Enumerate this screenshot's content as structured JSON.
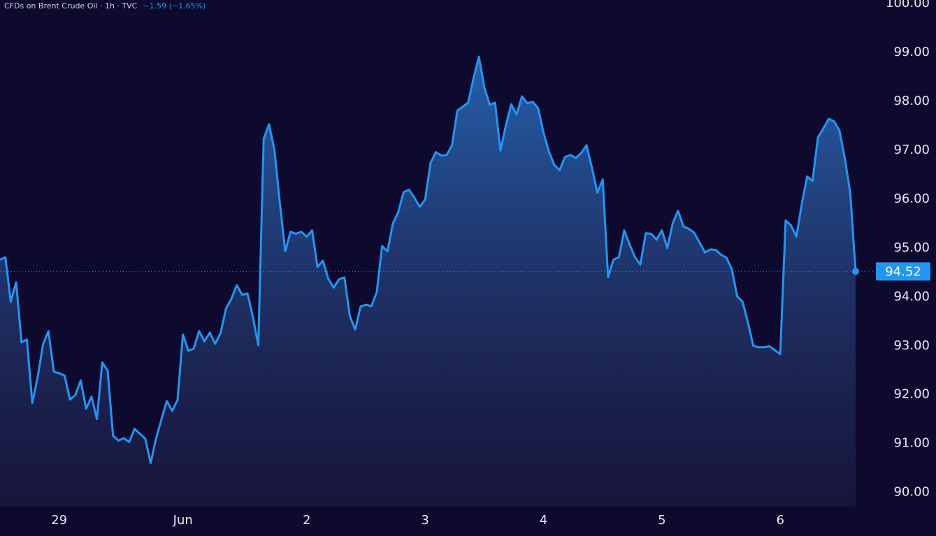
{
  "chart_data": {
    "type": "area",
    "title": "CFDs on Brent Crude Oil · 1h · TVC",
    "change": "−1.59 (−1.65%)",
    "color": "#2196f3",
    "categories": [
      null,
      null,
      null,
      null,
      null,
      null,
      null,
      null,
      null,
      null,
      null,
      "29",
      null,
      null,
      null,
      null,
      null,
      null,
      null,
      null,
      null,
      null,
      null,
      null,
      null,
      null,
      null,
      null,
      null,
      null,
      null,
      null,
      null,
      null,
      "Jun",
      null,
      null,
      null,
      null,
      null,
      null,
      null,
      null,
      null,
      null,
      null,
      null,
      null,
      null,
      null,
      null,
      null,
      null,
      null,
      null,
      null,
      null,
      "2",
      null,
      null,
      null,
      null,
      null,
      null,
      null,
      null,
      null,
      null,
      null,
      null,
      null,
      null,
      null,
      null,
      null,
      null,
      null,
      null,
      null,
      "3",
      null,
      null,
      null,
      null,
      null,
      null,
      null,
      null,
      null,
      null,
      null,
      null,
      null,
      null,
      null,
      null,
      null,
      null,
      null,
      null,
      null,
      "4",
      null,
      null,
      null,
      null,
      null,
      null,
      null,
      null,
      null,
      null,
      null,
      null,
      null,
      null,
      null,
      null,
      null,
      null,
      null,
      null,
      null,
      "5",
      null,
      null,
      null,
      null,
      null,
      null,
      null,
      null,
      null,
      null,
      null,
      null,
      null,
      null,
      null,
      null,
      null,
      null,
      null,
      null,
      null,
      "6",
      null,
      null,
      null,
      null,
      null,
      null,
      null,
      null,
      null,
      null,
      null,
      null,
      null,
      null
    ],
    "values": [
      94.76,
      94.81,
      93.9,
      94.3,
      93.07,
      93.13,
      91.83,
      92.36,
      93.03,
      93.3,
      92.47,
      92.44,
      92.39,
      91.9,
      91.99,
      92.29,
      91.71,
      91.96,
      91.5,
      92.66,
      92.49,
      91.16,
      91.06,
      91.11,
      91.03,
      91.3,
      91.2,
      91.1,
      90.6,
      91.1,
      91.49,
      91.87,
      91.67,
      91.89,
      93.23,
      92.9,
      92.94,
      93.3,
      93.09,
      93.27,
      93.04,
      93.26,
      93.76,
      93.96,
      94.24,
      94.04,
      94.07,
      93.59,
      93.01,
      97.23,
      97.53,
      97.0,
      95.93,
      94.93,
      95.33,
      95.29,
      95.33,
      95.23,
      95.36,
      94.61,
      94.74,
      94.37,
      94.19,
      94.36,
      94.4,
      93.61,
      93.33,
      93.8,
      93.84,
      93.81,
      94.09,
      95.04,
      94.93,
      95.5,
      95.73,
      96.14,
      96.19,
      96.03,
      95.84,
      95.99,
      96.73,
      96.96,
      96.89,
      96.9,
      97.1,
      97.81,
      97.89,
      97.97,
      98.47,
      98.91,
      98.29,
      97.93,
      97.97,
      96.99,
      97.5,
      97.94,
      97.73,
      98.1,
      97.96,
      97.99,
      97.86,
      97.36,
      96.97,
      96.7,
      96.59,
      96.86,
      96.9,
      96.84,
      96.94,
      97.1,
      96.64,
      96.13,
      96.4,
      94.4,
      94.76,
      94.81,
      95.36,
      95.07,
      94.81,
      94.66,
      95.3,
      95.29,
      95.17,
      95.36,
      95.0,
      95.5,
      95.76,
      95.44,
      95.39,
      95.31,
      95.11,
      94.91,
      94.97,
      94.96,
      94.86,
      94.8,
      94.57,
      94.01,
      93.9,
      93.47,
      93.0,
      92.97,
      92.97,
      92.99,
      92.91,
      92.83,
      95.56,
      95.46,
      95.23,
      95.9,
      96.46,
      96.37,
      97.26,
      97.44,
      97.64,
      97.59,
      97.4,
      96.83,
      96.13,
      94.52
    ],
    "ylim": [
      89.71,
      100.07
    ],
    "yticks": [
      {
        "value": 90,
        "label": "90.00"
      },
      {
        "value": 91,
        "label": "91.00"
      },
      {
        "value": 92,
        "label": "92.00"
      },
      {
        "value": 93,
        "label": "93.00"
      },
      {
        "value": 94,
        "label": "94.00"
      },
      {
        "value": 95,
        "label": "95.00"
      },
      {
        "value": 96,
        "label": "96.00"
      },
      {
        "value": 97,
        "label": "97.00"
      },
      {
        "value": 98,
        "label": "98.00"
      },
      {
        "value": 99,
        "label": "99.00"
      },
      {
        "value": 100,
        "label": "100.00"
      }
    ]
  }
}
